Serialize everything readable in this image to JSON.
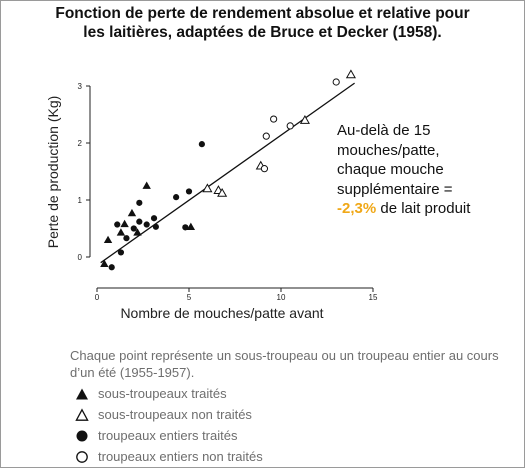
{
  "title": {
    "line1": "Fonction de perte de rendement absolue et relative pour",
    "line2": "les laitières, adaptées de Bruce et Decker (1958)."
  },
  "annotation": {
    "line1": "Au-delà de 15",
    "line2": "mouches/patte,",
    "line3": "chaque mouche",
    "line4": "supplémentaire =",
    "highlight": "-2,3%",
    "rest": " de lait produit",
    "highlight_color": "#f0a818"
  },
  "note": "Chaque point représente un sous-troupeau ou un troupeau entier au cours d’un été (1955-1957).",
  "chart_data": {
    "type": "scatter",
    "xlabel": "Nombre de mouches/patte avant",
    "ylabel": "Perte de production (Kg)",
    "xlim": [
      0,
      15
    ],
    "ylim": [
      -0.25,
      3.5
    ],
    "xticks": [
      0,
      5,
      10,
      15
    ],
    "yticks": [
      0,
      1,
      2,
      3
    ],
    "grid": false,
    "legend_position": "below",
    "series": [
      {
        "name": "sous-troupeaux traités",
        "marker": "filled-triangle",
        "points": [
          [
            0.4,
            -0.12
          ],
          [
            0.6,
            0.3
          ],
          [
            1.3,
            0.43
          ],
          [
            1.5,
            0.58
          ],
          [
            1.9,
            0.77
          ],
          [
            2.2,
            0.43
          ],
          [
            2.7,
            1.25
          ],
          [
            5.1,
            0.53
          ]
        ]
      },
      {
        "name": "sous-troupeaux non traités",
        "marker": "open-triangle",
        "points": [
          [
            6.0,
            1.2
          ],
          [
            6.6,
            1.17
          ],
          [
            6.8,
            1.12
          ],
          [
            8.9,
            1.6
          ],
          [
            11.3,
            2.4
          ],
          [
            13.8,
            3.2
          ]
        ]
      },
      {
        "name": "troupeaux entiers traités",
        "marker": "filled-circle",
        "points": [
          [
            0.8,
            -0.18
          ],
          [
            1.1,
            0.57
          ],
          [
            1.3,
            0.08
          ],
          [
            1.6,
            0.33
          ],
          [
            2.0,
            0.5
          ],
          [
            2.3,
            0.62
          ],
          [
            2.3,
            0.95
          ],
          [
            2.7,
            0.57
          ],
          [
            3.1,
            0.68
          ],
          [
            3.2,
            0.53
          ],
          [
            4.3,
            1.05
          ],
          [
            4.8,
            0.52
          ],
          [
            5.0,
            1.15
          ],
          [
            5.7,
            1.98
          ]
        ]
      },
      {
        "name": "troupeaux entiers non traités",
        "marker": "open-circle",
        "points": [
          [
            9.1,
            1.55
          ],
          [
            9.2,
            2.12
          ],
          [
            9.6,
            2.42
          ],
          [
            10.5,
            2.3
          ],
          [
            13.0,
            3.07
          ]
        ]
      }
    ],
    "trendline": {
      "x1": 0.2,
      "y1": -0.1,
      "x2": 14.0,
      "y2": 3.05
    },
    "colors": {
      "points": "#111111",
      "axes": "#222222",
      "trend": "#111111"
    }
  }
}
